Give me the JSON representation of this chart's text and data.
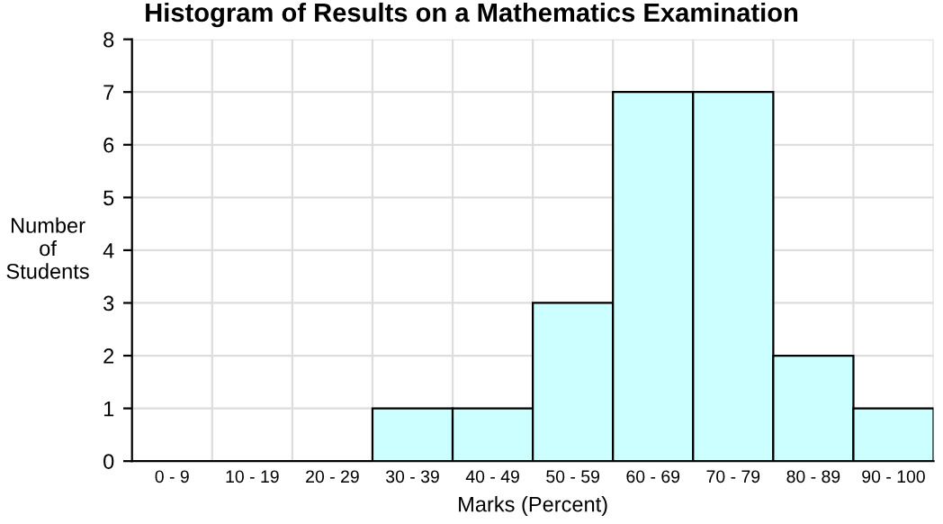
{
  "chart_data": {
    "type": "bar",
    "title": "Histogram of Results on a Mathematics Examination",
    "xlabel": "Marks (Percent)",
    "ylabel": "Number\nof\nStudents",
    "categories": [
      "0 - 9",
      "10 - 19",
      "20 - 29",
      "30 - 39",
      "40 - 49",
      "50 - 59",
      "60 - 69",
      "70 - 79",
      "80 - 89",
      "90 - 100"
    ],
    "values": [
      0,
      0,
      0,
      1,
      1,
      3,
      7,
      7,
      2,
      1
    ],
    "color": "#ccffff",
    "ylim": [
      0,
      8
    ],
    "yticks": [
      0,
      1,
      2,
      3,
      4,
      5,
      6,
      7,
      8
    ],
    "grid": true
  }
}
